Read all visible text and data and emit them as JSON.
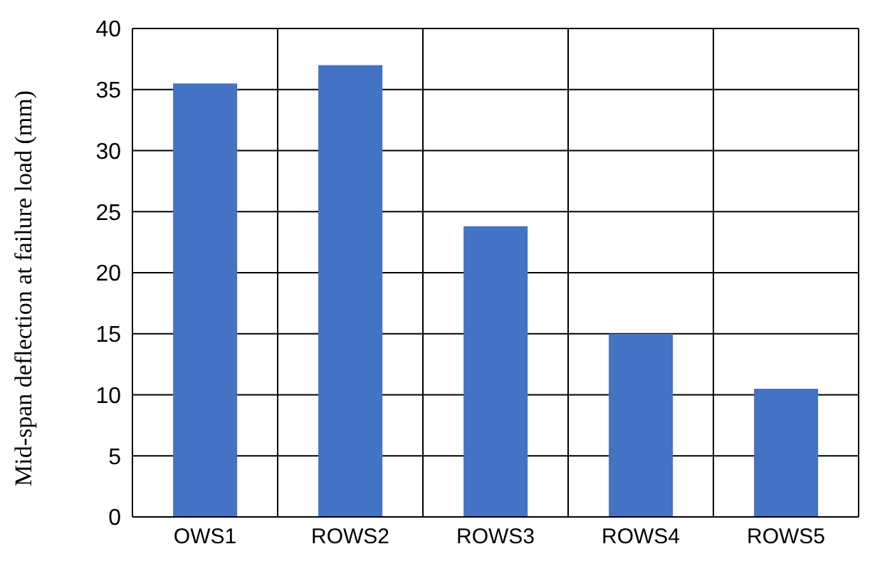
{
  "chart_data": {
    "type": "bar",
    "ylabel": "Mid-span deflection at failure load (mm)",
    "categories": [
      "OWS1",
      "ROWS2",
      "ROWS3",
      "ROWS4",
      "ROWS5"
    ],
    "values": [
      35.5,
      37,
      23.8,
      15,
      10.5
    ],
    "color": "#4472c4",
    "ylim": [
      0,
      40
    ],
    "yticks": [
      0,
      5,
      10,
      15,
      20,
      25,
      30,
      35,
      40
    ],
    "grid": true
  }
}
